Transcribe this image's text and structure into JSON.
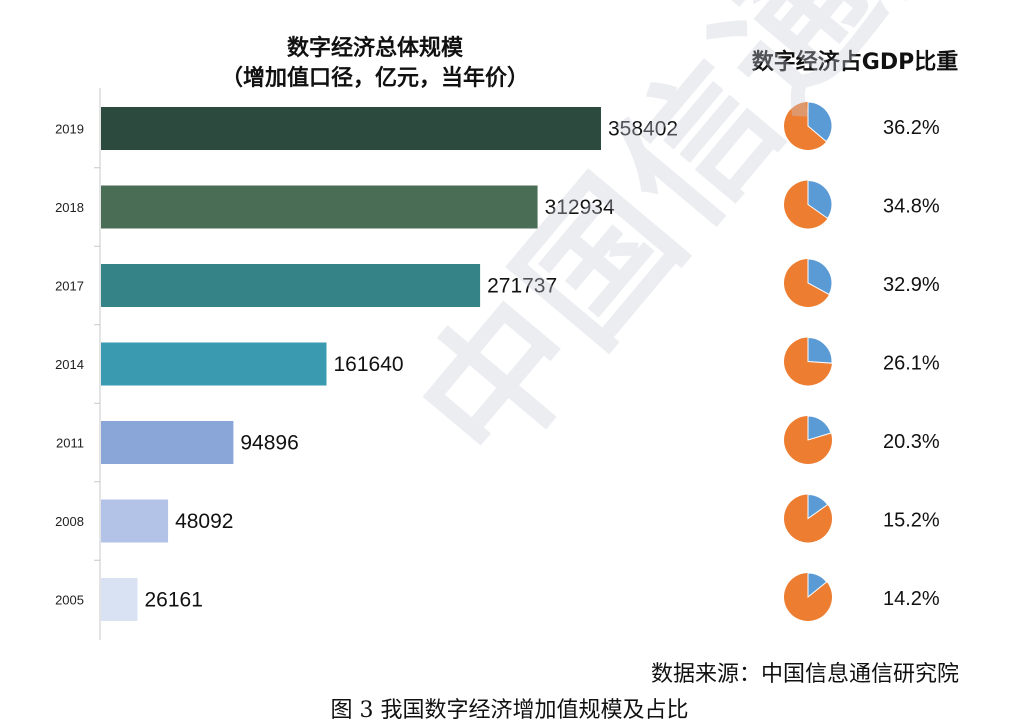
{
  "bar_title_line1": "数字经济总体规模",
  "bar_title_line2": "（增加值口径，亿元，当年价）",
  "pie_title": "数字经济占GDP比重",
  "source": "数据来源：中国信息通信研究院",
  "caption": "图 3  我国数字经济增加值规模及占比",
  "watermark": "中国信通院",
  "colors": {
    "bars": [
      "#2d4a3e",
      "#4a6e55",
      "#358386",
      "#3a9ab0",
      "#8aa6d8",
      "#b3c3e8",
      "#d9e2f3"
    ],
    "pie_share": "#5b9bd5",
    "pie_rest": "#ed7d31"
  },
  "chart_data": [
    {
      "type": "bar",
      "orientation": "horizontal",
      "title": "数字经济总体规模（增加值口径，亿元，当年价）",
      "categories": [
        "2019",
        "2018",
        "2017",
        "2014",
        "2011",
        "2008",
        "2005"
      ],
      "values": [
        358402,
        312934,
        271737,
        161640,
        94896,
        48092,
        26161
      ],
      "data_labels": [
        "358402",
        "312934",
        "271737",
        "161640",
        "94896",
        "48092",
        "26161"
      ],
      "xlim": [
        0,
        358402
      ],
      "grid": false
    },
    {
      "type": "pie",
      "title": "数字经济占GDP比重",
      "categories": [
        "2019",
        "2018",
        "2017",
        "2014",
        "2011",
        "2008",
        "2005"
      ],
      "values": [
        36.2,
        34.8,
        32.9,
        26.1,
        20.3,
        15.2,
        14.2
      ],
      "data_labels": [
        "36.2%",
        "34.8%",
        "32.9%",
        "26.1%",
        "20.3%",
        "15.2%",
        "14.2%"
      ]
    }
  ]
}
